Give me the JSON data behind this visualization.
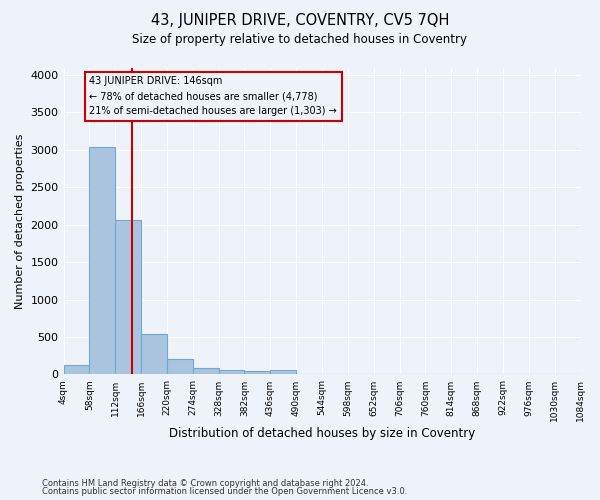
{
  "title": "43, JUNIPER DRIVE, COVENTRY, CV5 7QH",
  "subtitle": "Size of property relative to detached houses in Coventry",
  "xlabel": "Distribution of detached houses by size in Coventry",
  "ylabel": "Number of detached properties",
  "footnote1": "Contains HM Land Registry data © Crown copyright and database right 2024.",
  "footnote2": "Contains public sector information licensed under the Open Government Licence v3.0.",
  "annotation_line1": "43 JUNIPER DRIVE: 146sqm",
  "annotation_line2": "← 78% of detached houses are smaller (4,778)",
  "annotation_line3": "21% of semi-detached houses are larger (1,303) →",
  "bar_edges": [
    4,
    58,
    112,
    166,
    220,
    274,
    328,
    382,
    436,
    490,
    544,
    598,
    652,
    706,
    760,
    814,
    868,
    922,
    976,
    1030,
    1084
  ],
  "bar_heights": [
    130,
    3040,
    2060,
    545,
    205,
    80,
    55,
    40,
    55,
    0,
    0,
    0,
    0,
    0,
    0,
    0,
    0,
    0,
    0,
    0
  ],
  "bar_color": "#aac4e0",
  "bar_edge_color": "#6fa8d0",
  "bg_color": "#eef3f9",
  "grid_color": "#ffffff",
  "vline_x": 146,
  "vline_color": "#cc0000",
  "annotation_box_color": "#cc0000",
  "ylim": [
    0,
    4100
  ],
  "yticks": [
    0,
    500,
    1000,
    1500,
    2000,
    2500,
    3000,
    3500,
    4000
  ]
}
